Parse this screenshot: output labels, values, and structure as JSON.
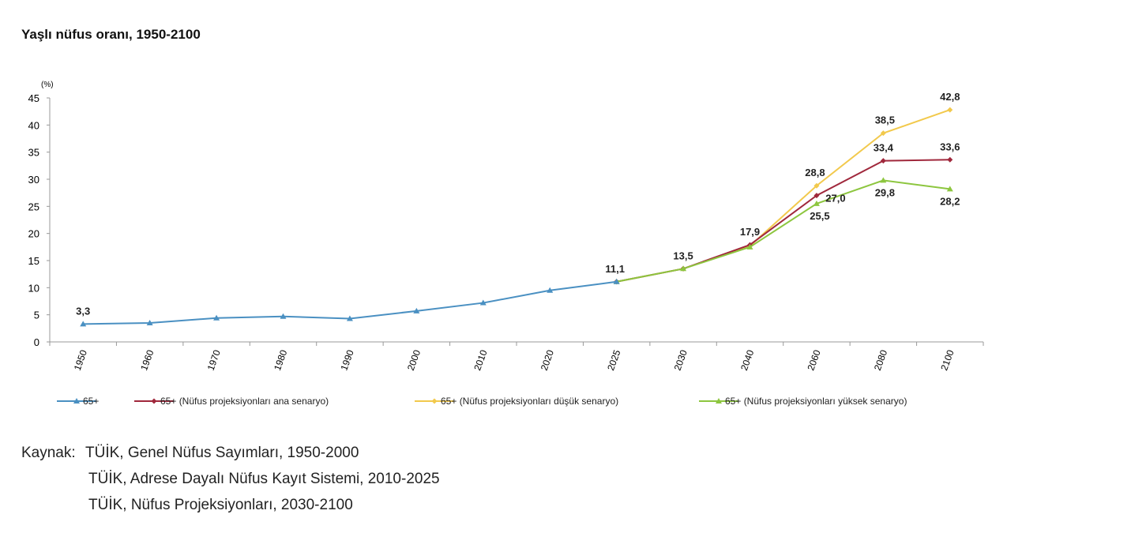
{
  "title": "Yaşlı nüfus oranı, 1950-2100",
  "chart_data": {
    "type": "line",
    "title": "Yaşlı nüfus oranı, 1950-2100",
    "ylabel": "(%)",
    "ylim": [
      0,
      45
    ],
    "yticks": [
      0,
      5,
      10,
      15,
      20,
      25,
      30,
      35,
      40,
      45
    ],
    "categories": [
      "1950",
      "1960",
      "1970",
      "1980",
      "1990",
      "2000",
      "2010",
      "2020",
      "2025",
      "2030",
      "2040",
      "2060",
      "2080",
      "2100"
    ],
    "grid": false,
    "legend": "bottom",
    "series": [
      {
        "name": "65+",
        "color": "#4a90c2",
        "marker": "triangle",
        "values": [
          3.3,
          3.5,
          4.4,
          4.7,
          4.3,
          5.7,
          7.2,
          9.5,
          11.1,
          null,
          null,
          null,
          null,
          null
        ],
        "labels": {
          "0": "3,3",
          "8": "11,1"
        }
      },
      {
        "name": "65+ (Nüfus projeksiyonları ana senaryo)",
        "color": "#a0283c",
        "marker": "diamond",
        "values": [
          null,
          null,
          null,
          null,
          null,
          null,
          null,
          null,
          11.1,
          13.5,
          17.9,
          27.0,
          33.4,
          33.6
        ],
        "labels": {
          "9": "13,5",
          "10": "17,9",
          "11": "27,0",
          "12": "33,4",
          "13": "33,6"
        }
      },
      {
        "name": "65+ (Nüfus projeksiyonları düşük senaryo)",
        "color": "#f2c94c",
        "marker": "diamond",
        "values": [
          null,
          null,
          null,
          null,
          null,
          null,
          null,
          null,
          11.1,
          13.5,
          17.7,
          28.8,
          38.5,
          42.8
        ],
        "labels": {
          "11": "28,8",
          "12": "38,5",
          "13": "42,8"
        }
      },
      {
        "name": "65+ (Nüfus projeksiyonları yüksek senaryo)",
        "color": "#8dc63f",
        "marker": "triangle",
        "values": [
          null,
          null,
          null,
          null,
          null,
          null,
          null,
          null,
          11.1,
          13.5,
          17.5,
          25.5,
          29.8,
          28.2
        ],
        "labels": {
          "11": "25,5",
          "12": "29,8",
          "13": "28,2"
        }
      }
    ]
  },
  "source": {
    "label": "Kaynak:",
    "lines": [
      "TÜİK, Genel Nüfus Sayımları, 1950-2000",
      "TÜİK, Adrese Dayalı Nüfus Kayıt Sistemi, 2010-2025",
      "TÜİK, Nüfus Projeksiyonları, 2030-2100"
    ]
  }
}
